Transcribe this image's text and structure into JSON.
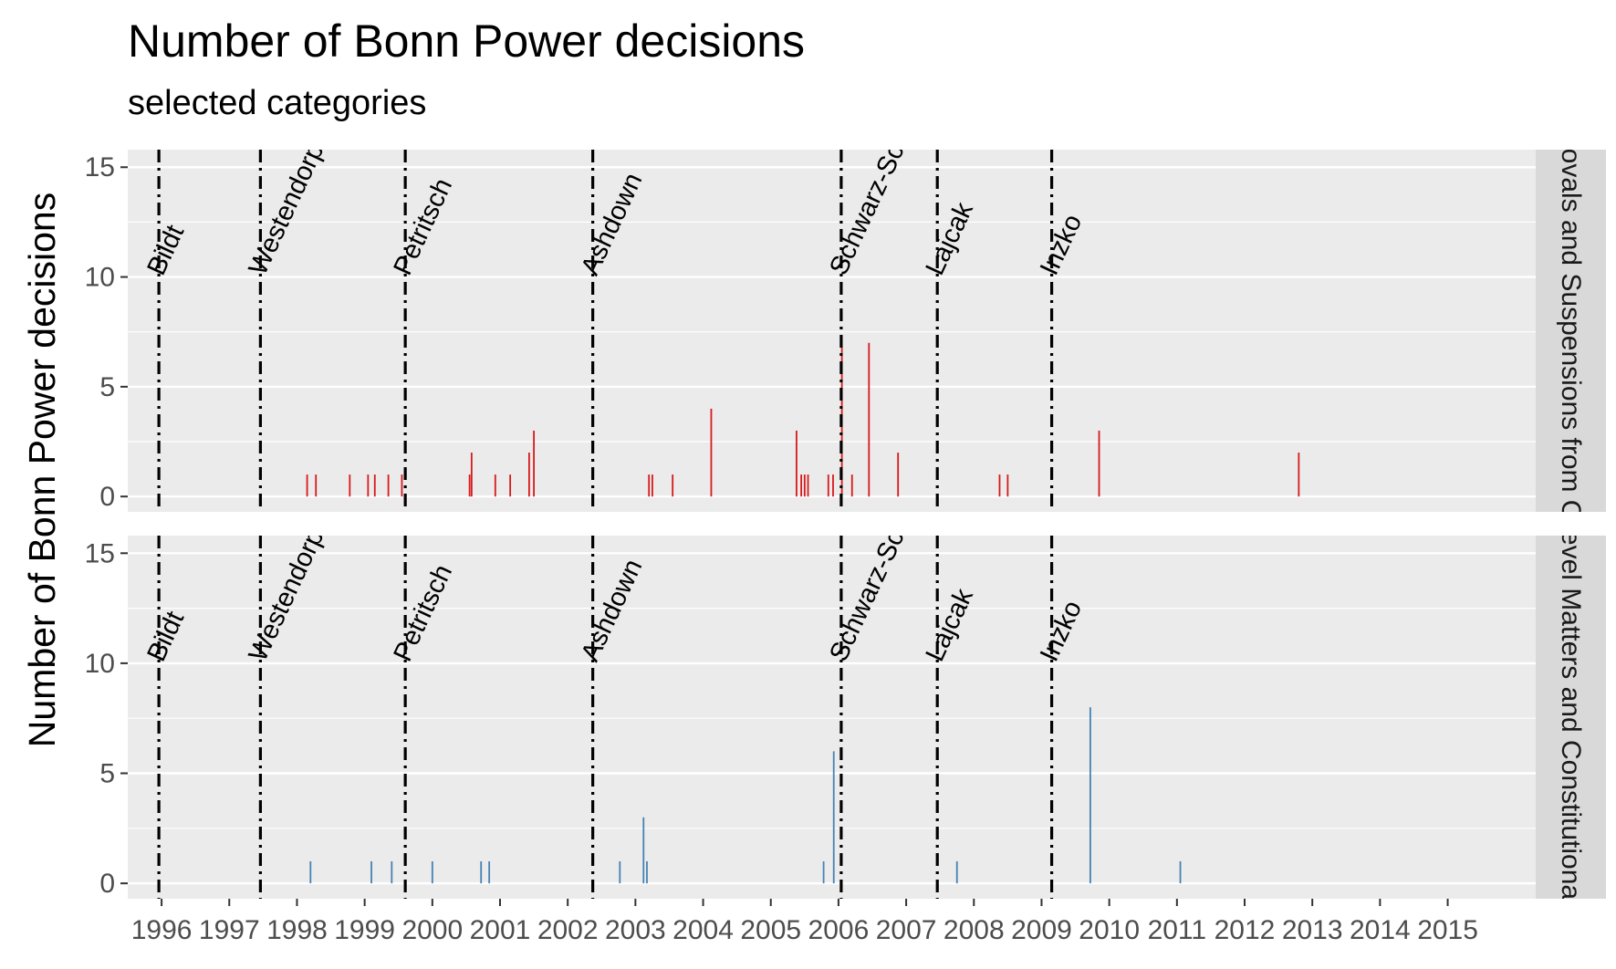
{
  "chart_data": {
    "type": "bar",
    "title": "Number of Bonn Power decisions",
    "subtitle": "selected categories",
    "ylabel": "Number of Bonn Power decisions",
    "xlabel": "",
    "xlim": [
      1995.5,
      2016.3
    ],
    "ylim": [
      -0.7,
      15.8
    ],
    "y_ticks": [
      0,
      5,
      10,
      15
    ],
    "x_ticks": [
      "1996",
      "1997",
      "1998",
      "1999",
      "2000",
      "2001",
      "2002",
      "2003",
      "2004",
      "2005",
      "2006",
      "2007",
      "2008",
      "2009",
      "2010",
      "2011",
      "2012",
      "2013",
      "2014",
      "2015"
    ],
    "grid": true,
    "high_representatives": [
      {
        "name": "Bildt",
        "start": 1995.96
      },
      {
        "name": "Westendorp",
        "start": 1997.46
      },
      {
        "name": "Petritsch",
        "start": 1999.6
      },
      {
        "name": "Ashdown",
        "start": 2002.37
      },
      {
        "name": "Schwarz-Schilling",
        "start": 2006.04
      },
      {
        "name": "Lajcak",
        "start": 2007.46
      },
      {
        "name": "Inzko",
        "start": 2009.15
      }
    ],
    "panels": [
      {
        "strip_label": "Removals and Suspensions from Office",
        "color": "#d7191c",
        "bars": [
          {
            "x": 1998.15,
            "y": 1
          },
          {
            "x": 1998.28,
            "y": 1
          },
          {
            "x": 1998.78,
            "y": 1
          },
          {
            "x": 1999.05,
            "y": 1
          },
          {
            "x": 1999.15,
            "y": 1
          },
          {
            "x": 1999.35,
            "y": 1
          },
          {
            "x": 1999.55,
            "y": 1
          },
          {
            "x": 2000.55,
            "y": 1
          },
          {
            "x": 2000.58,
            "y": 2
          },
          {
            "x": 2000.93,
            "y": 1
          },
          {
            "x": 2001.15,
            "y": 1
          },
          {
            "x": 2001.43,
            "y": 2
          },
          {
            "x": 2001.5,
            "y": 3
          },
          {
            "x": 2003.2,
            "y": 1
          },
          {
            "x": 2003.25,
            "y": 1
          },
          {
            "x": 2003.55,
            "y": 1
          },
          {
            "x": 2004.12,
            "y": 4
          },
          {
            "x": 2005.38,
            "y": 3
          },
          {
            "x": 2005.45,
            "y": 1
          },
          {
            "x": 2005.5,
            "y": 1
          },
          {
            "x": 2005.55,
            "y": 1
          },
          {
            "x": 2005.85,
            "y": 1
          },
          {
            "x": 2005.92,
            "y": 1
          },
          {
            "x": 2006.05,
            "y": 7
          },
          {
            "x": 2006.2,
            "y": 1
          },
          {
            "x": 2006.45,
            "y": 7
          },
          {
            "x": 2006.88,
            "y": 2
          },
          {
            "x": 2008.38,
            "y": 1
          },
          {
            "x": 2008.5,
            "y": 1
          },
          {
            "x": 2009.85,
            "y": 3
          },
          {
            "x": 2012.8,
            "y": 2
          }
        ]
      },
      {
        "strip_label": "State-Level Matters and Constitutional Issues",
        "color": "#4682b4",
        "bars": [
          {
            "x": 1998.2,
            "y": 1
          },
          {
            "x": 1999.1,
            "y": 1
          },
          {
            "x": 1999.4,
            "y": 1
          },
          {
            "x": 2000.0,
            "y": 1
          },
          {
            "x": 2000.72,
            "y": 1
          },
          {
            "x": 2000.84,
            "y": 1
          },
          {
            "x": 2002.77,
            "y": 1
          },
          {
            "x": 2003.12,
            "y": 3
          },
          {
            "x": 2003.17,
            "y": 1
          },
          {
            "x": 2005.78,
            "y": 1
          },
          {
            "x": 2005.93,
            "y": 6
          },
          {
            "x": 2007.75,
            "y": 1
          },
          {
            "x": 2009.72,
            "y": 8
          },
          {
            "x": 2011.05,
            "y": 1
          }
        ]
      }
    ]
  }
}
